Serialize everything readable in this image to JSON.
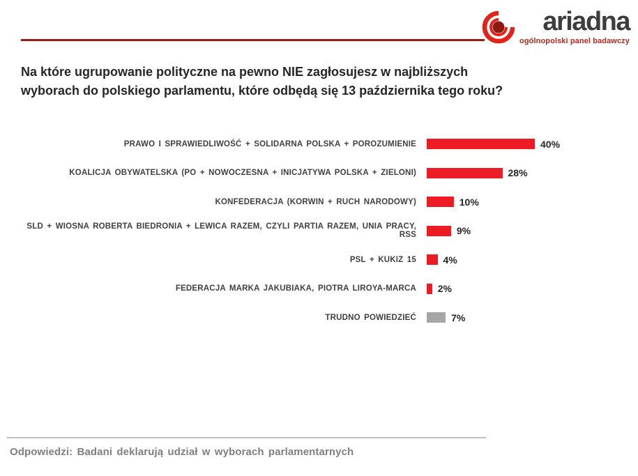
{
  "logo": {
    "brand": "ariadna",
    "tagline": "ogólnopolski panel badawczy"
  },
  "title": "Na które ugrupowanie polityczne na pewno NIE zagłosujesz w najbliższych wyborach do polskiego parlamentu, które odbędą się 13 października tego roku?",
  "footer_note": "Odpowiedzi: Badani deklarują udział w wyborach parlamentarnych",
  "colors": {
    "bar_red": "#ed1c24",
    "bar_gray": "#a6a6a6",
    "header_rule": "#9e1b10",
    "footer_rule": "#bfbfbf",
    "logo_red": "#e2231a",
    "logo_dark": "#8c1a10"
  },
  "chart_data": {
    "type": "bar",
    "orientation": "horizontal",
    "unit": "%",
    "xlim": [
      0,
      42
    ],
    "grid": false,
    "legend": "none",
    "categories": [
      "PRAWO I SPRAWIEDLIWOŚĆ + SOLIDARNA POLSKA + POROZUMIENIE",
      "KOALICJA OBYWATELSKA (PO + NOWOCZESNA + INICJATYWA POLSKA + ZIELONI)",
      "KONFEDERACJA (KORWIN + RUCH NARODOWY)",
      "SLD + WIOSNA ROBERTA BIEDRONIA + LEWICA RAZEM, CZYLI PARTIA RAZEM, UNIA PRACY, RSS",
      "PSL + KUKIZ 15",
      "FEDERACJA MARKA JAKUBIAKA, PIOTRA LIROYA-MARCA",
      "TRUDNO POWIEDZIEĆ"
    ],
    "values": [
      40,
      28,
      10,
      9,
      4,
      2,
      7
    ],
    "value_labels": [
      "40%",
      "28%",
      "10%",
      "9%",
      "4%",
      "2%",
      "7%"
    ],
    "bar_colors": [
      "#ed1c24",
      "#ed1c24",
      "#ed1c24",
      "#ed1c24",
      "#ed1c24",
      "#ed1c24",
      "#a6a6a6"
    ]
  }
}
